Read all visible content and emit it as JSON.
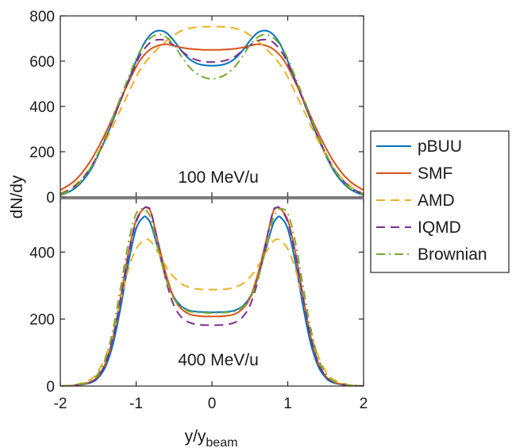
{
  "chart_data": {
    "type": "line",
    "xlabel": "y/y",
    "xlabel_sub": "beam",
    "ylabel": "dN/dy",
    "xlim": [
      -2,
      2
    ],
    "xticks": [
      -2,
      -1,
      0,
      1,
      2
    ],
    "tick_labels_x": [
      "-2",
      "-1",
      "0",
      "1",
      "2"
    ],
    "legend": {
      "placement": "right",
      "entries": [
        "pBUU",
        "SMF",
        "AMD",
        "IQMD",
        "Brownian"
      ]
    },
    "series_styles": [
      {
        "name": "pBUU",
        "color": "#0072bd",
        "dash": "solid"
      },
      {
        "name": "SMF",
        "color": "#d95319",
        "dash": "solid"
      },
      {
        "name": "AMD",
        "color": "#edb120",
        "dash": "dashed"
      },
      {
        "name": "IQMD",
        "color": "#7e2f8e",
        "dash": "dashed"
      },
      {
        "name": "Brownian",
        "color": "#77ac30",
        "dash": "dashdot"
      }
    ],
    "panels": [
      {
        "label": "100 MeV/u",
        "ylim": [
          0,
          800
        ],
        "yticks": [
          0,
          200,
          400,
          600,
          800
        ],
        "tick_labels_y": [
          "0",
          "200",
          "400",
          "600",
          "800"
        ],
        "x": [
          -2,
          -1.8,
          -1.6,
          -1.4,
          -1.2,
          -1.0,
          -0.9,
          -0.8,
          -0.7,
          -0.6,
          -0.5,
          -0.4,
          -0.3,
          -0.2,
          -0.1,
          0,
          0.1,
          0.2,
          0.3,
          0.4,
          0.5,
          0.6,
          0.7,
          0.8,
          0.9,
          1.0,
          1.2,
          1.4,
          1.6,
          1.8,
          2
        ],
        "series": [
          {
            "name": "pBUU",
            "values": [
              8,
              40,
              120,
              260,
              430,
              600,
              675,
              720,
              735,
              725,
              690,
              645,
              610,
              590,
              582,
              580,
              582,
              590,
              610,
              645,
              690,
              725,
              735,
              720,
              675,
              600,
              430,
              260,
              120,
              40,
              8
            ]
          },
          {
            "name": "SMF",
            "values": [
              30,
              75,
              160,
              285,
              435,
              575,
              625,
              655,
              670,
              675,
              668,
              660,
              655,
              652,
              650,
              650,
              650,
              652,
              655,
              660,
              668,
              675,
              670,
              655,
              625,
              575,
              435,
              285,
              160,
              75,
              30
            ]
          },
          {
            "name": "AMD",
            "values": [
              15,
              55,
              130,
              250,
              390,
              530,
              585,
              625,
              660,
              690,
              715,
              735,
              745,
              750,
              752,
              752,
              752,
              750,
              745,
              735,
              715,
              690,
              660,
              625,
              585,
              530,
              390,
              250,
              130,
              55,
              15
            ]
          },
          {
            "name": "IQMD",
            "values": [
              12,
              50,
              130,
              265,
              430,
              590,
              650,
              685,
              695,
              690,
              670,
              645,
              620,
              605,
              598,
              596,
              598,
              605,
              620,
              645,
              670,
              690,
              695,
              685,
              650,
              590,
              430,
              265,
              130,
              50,
              12
            ]
          },
          {
            "name": "Brownian",
            "values": [
              10,
              45,
              130,
              270,
              445,
              610,
              670,
              705,
              718,
              705,
              670,
              620,
              575,
              545,
              528,
              522,
              528,
              545,
              575,
              620,
              670,
              705,
              718,
              705,
              670,
              610,
              445,
              270,
              130,
              45,
              10
            ]
          }
        ]
      },
      {
        "label": "400 MeV/u",
        "ylim": [
          0,
          560
        ],
        "yticks": [
          0,
          200,
          400
        ],
        "tick_labels_y": [
          "0",
          "200",
          "400"
        ],
        "x": [
          -2,
          -1.8,
          -1.6,
          -1.5,
          -1.4,
          -1.3,
          -1.2,
          -1.1,
          -1.0,
          -0.9,
          -0.85,
          -0.8,
          -0.7,
          -0.6,
          -0.5,
          -0.4,
          -0.3,
          -0.2,
          -0.1,
          0,
          0.1,
          0.2,
          0.3,
          0.4,
          0.5,
          0.6,
          0.7,
          0.8,
          0.85,
          0.9,
          1.0,
          1.1,
          1.2,
          1.3,
          1.4,
          1.5,
          1.6,
          1.8,
          2
        ],
        "series": [
          {
            "name": "pBUU",
            "values": [
              0,
              2,
              10,
              25,
              60,
              130,
              240,
              370,
              470,
              505,
              500,
              480,
              400,
              320,
              265,
              238,
              226,
              222,
              221,
              220,
              221,
              222,
              226,
              238,
              265,
              320,
              400,
              480,
              500,
              505,
              470,
              370,
              240,
              130,
              60,
              25,
              10,
              2,
              0
            ]
          },
          {
            "name": "SMF",
            "values": [
              0,
              2,
              12,
              30,
              70,
              150,
              270,
              400,
              495,
              530,
              532,
              515,
              420,
              330,
              262,
              230,
              215,
              210,
              208,
              208,
              208,
              210,
              215,
              230,
              262,
              330,
              420,
              515,
              532,
              530,
              495,
              400,
              270,
              150,
              70,
              30,
              12,
              2,
              0
            ]
          },
          {
            "name": "AMD",
            "values": [
              0,
              4,
              20,
              45,
              90,
              160,
              260,
              350,
              410,
              435,
              438,
              430,
              395,
              355,
              325,
              305,
              295,
              290,
              288,
              288,
              288,
              290,
              295,
              305,
              325,
              355,
              395,
              430,
              438,
              435,
              410,
              350,
              260,
              160,
              90,
              45,
              20,
              4,
              0
            ]
          },
          {
            "name": "IQMD",
            "values": [
              0,
              2,
              12,
              30,
              70,
              150,
              265,
              395,
              490,
              530,
              533,
              518,
              415,
              310,
              240,
              205,
              190,
              184,
              182,
              182,
              182,
              184,
              190,
              205,
              240,
              310,
              415,
              518,
              533,
              530,
              490,
              395,
              265,
              150,
              70,
              30,
              12,
              2,
              0
            ]
          },
          {
            "name": "Brownian",
            "values": [
              0,
              3,
              15,
              38,
              85,
              175,
              300,
              430,
              515,
              530,
              520,
              495,
              400,
              315,
              260,
              235,
              223,
              220,
              219,
              218,
              219,
              220,
              223,
              235,
              260,
              315,
              400,
              495,
              520,
              530,
              515,
              430,
              300,
              175,
              85,
              38,
              15,
              3,
              0
            ]
          }
        ]
      }
    ]
  }
}
